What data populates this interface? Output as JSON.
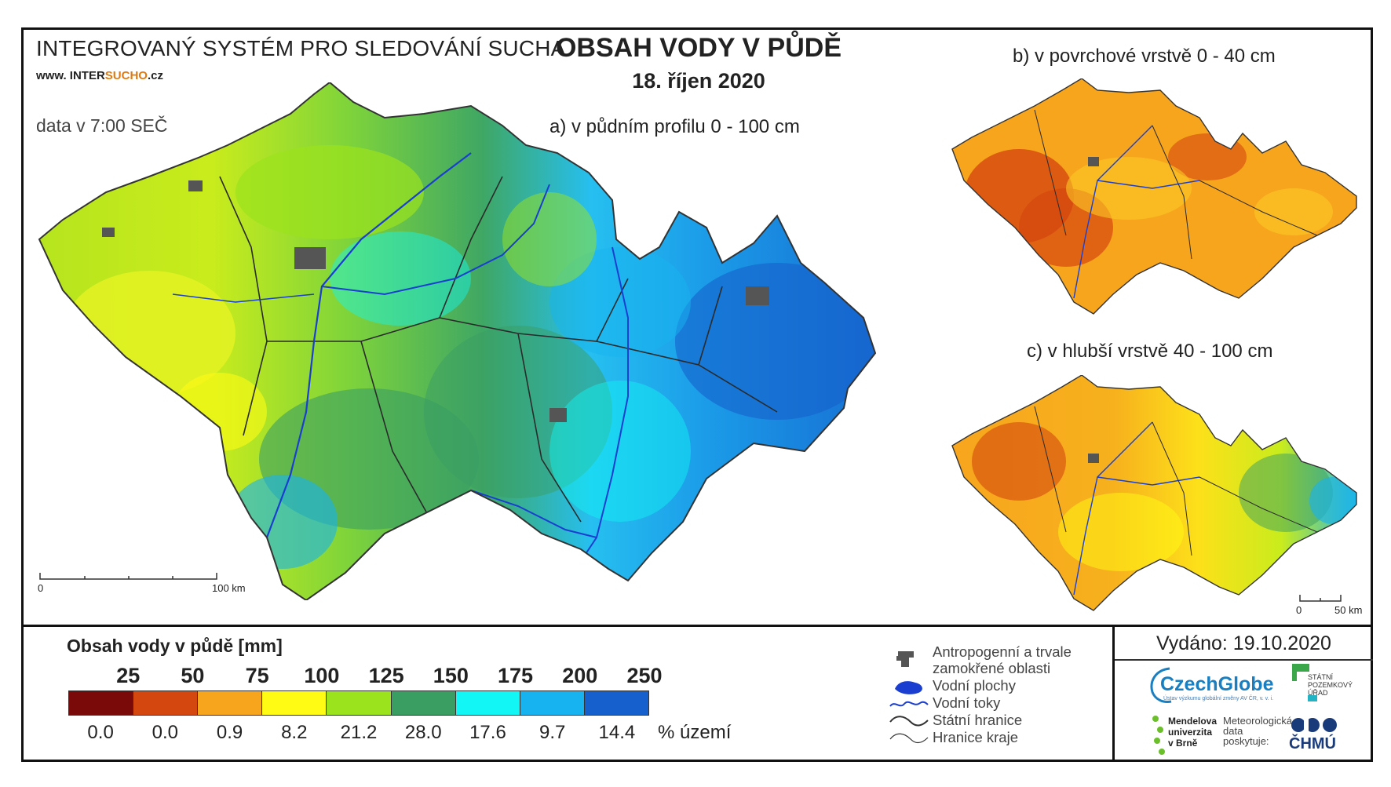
{
  "header": {
    "system_title": "INTEGROVANÝ SYSTÉM PRO SLEDOVÁNÍ SUCHA",
    "website_prefix": "www. INTER",
    "website_brand": "SUCHO",
    "website_suffix": ".cz",
    "data_time": "data v 7:00 SEČ",
    "main_title": "OBSAH VODY V PŮDĚ",
    "date": "18. říjen 2020"
  },
  "maps": {
    "a": {
      "label": "a) v půdním profilu 0 - 100 cm",
      "scale_start": "0",
      "scale_end": "100 km"
    },
    "b": {
      "label": "b) v povrchové vrstvě 0 - 40 cm"
    },
    "c": {
      "label": "c) v hlubší vrstvě 40 - 100 cm",
      "scale_start": "0",
      "scale_end": "50 km"
    }
  },
  "legend": {
    "title": "Obsah vody v půdě  [mm]",
    "thresholds": [
      "25",
      "50",
      "75",
      "100",
      "125",
      "150",
      "175",
      "200",
      "250"
    ],
    "colors": [
      "#7a0a0a",
      "#d4470f",
      "#f7a51d",
      "#fffb14",
      "#9be31c",
      "#3a9e63",
      "#12f7f5",
      "#17b3f0",
      "#1560cc"
    ],
    "percentages": [
      "0.0",
      "0.0",
      "0.9",
      "8.2",
      "21.2",
      "28.0",
      "17.6",
      "9.7",
      "14.4"
    ],
    "percent_unit": "% území"
  },
  "symbols": {
    "anthropogenic_line1": "Antropogenní a trvale",
    "anthropogenic_line2": "zamokřené oblasti",
    "water_bodies": "Vodní plochy",
    "rivers": "Vodní toky",
    "state_border": "Státní hranice",
    "region_border": "Hranice kraje"
  },
  "footer": {
    "issued": "Vydáno: 19.10.2020",
    "logo_czechglobe": "CzechGlobe",
    "logo_czechglobe_sub": "Ústav výzkumu globální změny AV ČR, v. v. i.",
    "logo_spu": "STÁTNÍ POZEMKOVÝ ÚŘAD",
    "logo_mendel": "Mendelova univerzita v Brně",
    "logo_meteo": "Meteorologická data poskytuje:",
    "logo_chmu": "ČHMÚ"
  }
}
